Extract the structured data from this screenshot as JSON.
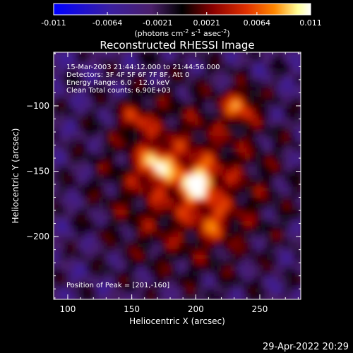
{
  "chart_data": {
    "type": "heatmap",
    "title": "Reconstructed RHESSI Image",
    "xlabel": "Heliocentric X (arcsec)",
    "ylabel": "Heliocentric Y (arcsec)",
    "xlim": [
      89,
      282
    ],
    "ylim": [
      -248,
      -59
    ],
    "x_ticks": [
      "100",
      "150",
      "200",
      "250"
    ],
    "x_tick_values": [
      100,
      150,
      200,
      250
    ],
    "y_ticks": [
      "-100",
      "-150",
      "-200"
    ],
    "y_tick_values": [
      -100,
      -150,
      -200
    ],
    "colorbar": {
      "range": [
        -0.011,
        0.011
      ],
      "tick_labels": [
        "-0.011",
        "-0.0064",
        "-0.0021",
        "0.0021",
        "0.0064",
        "0.011"
      ],
      "tick_values": [
        -0.011,
        -0.0064,
        -0.0021,
        0.0021,
        0.0064,
        0.011
      ],
      "units": "(photons cm<sup>-2</sup> s<sup>-1</sup> asec<sup>-2</sup>)",
      "colors": [
        "#0000ff",
        "#3b1fa0",
        "#4a1f6a",
        "#000000",
        "#8b0000",
        "#e03000",
        "#ff8800",
        "#ffff99",
        "#ffffff"
      ]
    },
    "annotations": [
      "15-Mar-2003 21:44:12.000 to 21:44:56.000",
      "Detectors: 3F 4F 5F 6F 7F 8F, Att 0",
      "Energy Range: 6.0 - 12.0 keV",
      "Clean     Total counts: 6.90E+03"
    ],
    "peak_label": "Position of Peak = [201,-160]",
    "peak": [
      201,
      -160
    ],
    "bright_sources": [
      {
        "x": 201,
        "y": -160,
        "value": 0.011
      },
      {
        "x": 170,
        "y": -145,
        "value": 0.0085
      },
      {
        "x": 235,
        "y": -100,
        "value": 0.0075
      },
      {
        "x": 155,
        "y": -110,
        "value": 0.005
      },
      {
        "x": 215,
        "y": -190,
        "value": 0.004
      }
    ]
  },
  "footer": {
    "timestamp": "29-Apr-2022 20:29"
  }
}
